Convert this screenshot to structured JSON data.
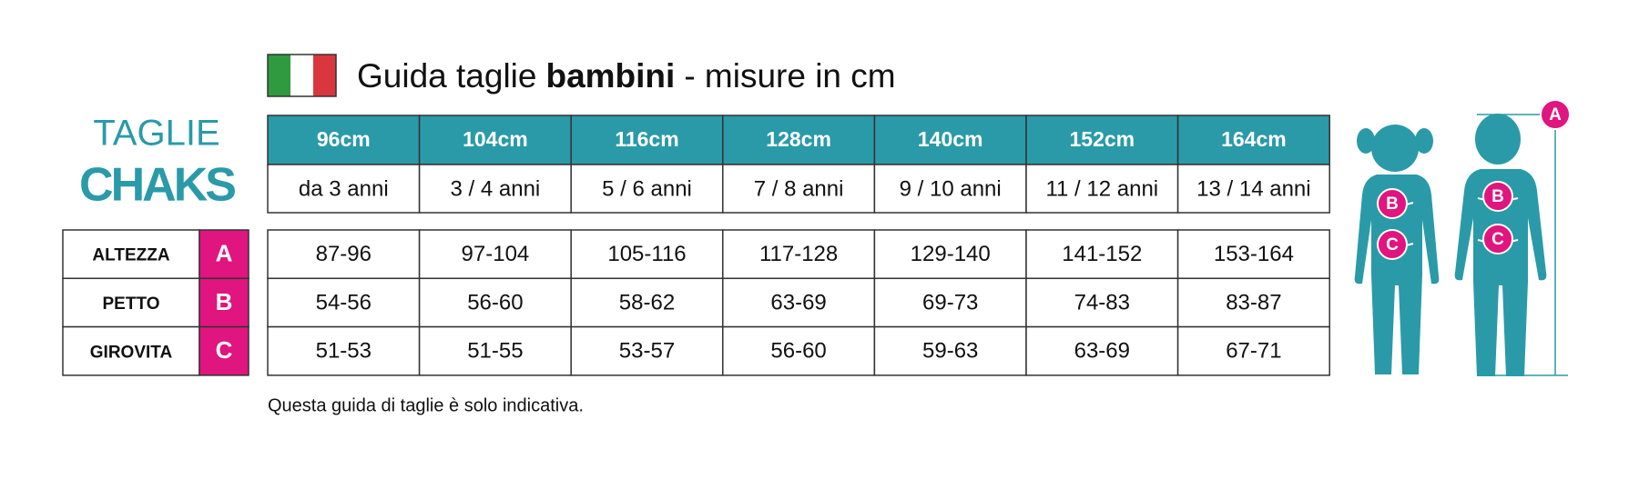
{
  "header": {
    "title": [
      "Guida taglie",
      "bambini",
      "- misure in cm"
    ]
  },
  "brand": {
    "line1": "TAGLIE",
    "line2": "CHAKS"
  },
  "table": {
    "sizes": [
      "96cm",
      "104cm",
      "116cm",
      "128cm",
      "140cm",
      "152cm",
      "164cm"
    ],
    "ages": [
      "da 3 anni",
      "3 / 4 anni",
      "5 / 6 anni",
      "7 / 8 anni",
      "9 / 10 anni",
      "11 / 12 anni",
      "13 / 14 anni"
    ],
    "rows": [
      {
        "label": "ALTEZZA",
        "letter": "A",
        "values": [
          "87-96",
          "97-104",
          "105-116",
          "117-128",
          "129-140",
          "141-152",
          "153-164"
        ]
      },
      {
        "label": "PETTO",
        "letter": "B",
        "values": [
          "54-56",
          "56-60",
          "58-62",
          "63-69",
          "69-73",
          "74-83",
          "83-87"
        ]
      },
      {
        "label": "GIROVITA",
        "letter": "C",
        "values": [
          "51-53",
          "51-55",
          "53-57",
          "56-60",
          "59-63",
          "63-69",
          "67-71"
        ]
      }
    ]
  },
  "figure": {
    "height_marker": "A",
    "girl_markers": [
      "B",
      "C"
    ],
    "boy_markers": [
      "B",
      "C"
    ]
  },
  "note": "Questa guida di taglie è solo indicativa."
}
